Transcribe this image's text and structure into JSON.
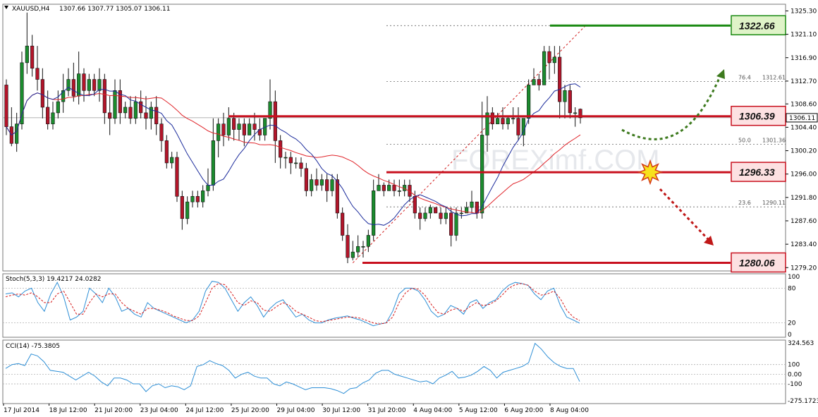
{
  "header": {
    "symbol": "XAUUSD,H4",
    "ohlc": "1307.66 1307.77 1305.07 1306.11"
  },
  "watermark": "FOREXimf.COM",
  "colors": {
    "bull": "#1b8c2e",
    "bear": "#b3152a",
    "ma_red": "#e0242a",
    "ma_blue": "#1c2c9c",
    "level_red": "#c8101e",
    "level_green": "#1a8a12",
    "stoch_main": "#2e8fd6",
    "stoch_signal": "#d61a1a",
    "cci": "#2e8fd6"
  },
  "chart_data": [
    {
      "type": "candlestick",
      "panel": "main",
      "y_axis": {
        "ticks": [
          "1325.30",
          "1321.10",
          "1316.90",
          "1312.70",
          "1308.60",
          "1304.40",
          "1300.20",
          "1296.00",
          "1291.80",
          "1287.60",
          "1283.40",
          "1279.20"
        ],
        "range": [
          1278.6,
          1326.5
        ]
      },
      "current_price": "1306.11",
      "candles": [
        [
          1312,
          1304.5,
          1313,
          1303
        ],
        [
          1304.5,
          1301.5,
          1308,
          1301
        ],
        [
          1301.5,
          1305,
          1307,
          1300
        ],
        [
          1305,
          1316,
          1318,
          1304
        ],
        [
          1316,
          1319,
          1325,
          1314
        ],
        [
          1319,
          1315,
          1321,
          1313.5
        ],
        [
          1315,
          1313,
          1319,
          1311
        ],
        [
          1313,
          1308,
          1315,
          1306
        ],
        [
          1308,
          1305,
          1311,
          1304
        ],
        [
          1305,
          1307,
          1309,
          1304
        ],
        [
          1307,
          1309,
          1311,
          1306
        ],
        [
          1309,
          1311,
          1314,
          1307
        ],
        [
          1311,
          1313,
          1315,
          1310
        ],
        [
          1313,
          1310,
          1316,
          1309
        ],
        [
          1310,
          1314,
          1318,
          1308.5
        ],
        [
          1314,
          1311,
          1315,
          1309
        ],
        [
          1311,
          1313,
          1314,
          1310
        ],
        [
          1313,
          1311,
          1314,
          1310
        ],
        [
          1311,
          1313,
          1315,
          1309
        ],
        [
          1313,
          1307,
          1314,
          1305
        ],
        [
          1307,
          1306,
          1310,
          1303
        ],
        [
          1306,
          1311,
          1313,
          1305
        ],
        [
          1311,
          1307,
          1313,
          1305
        ],
        [
          1307,
          1308,
          1309,
          1306
        ],
        [
          1308,
          1306,
          1310,
          1305
        ],
        [
          1306,
          1309,
          1310,
          1305
        ],
        [
          1309,
          1307,
          1311,
          1306
        ],
        [
          1307,
          1306,
          1310,
          1304
        ],
        [
          1306,
          1308,
          1309,
          1304
        ],
        [
          1308,
          1305,
          1310,
          1303
        ],
        [
          1305,
          1302,
          1306,
          1300
        ],
        [
          1302,
          1298,
          1303,
          1297
        ],
        [
          1298,
          1299,
          1300,
          1297
        ],
        [
          1299,
          1292,
          1300,
          1291
        ],
        [
          1292,
          1288,
          1293,
          1286
        ],
        [
          1288,
          1291,
          1292,
          1287
        ],
        [
          1291,
          1292,
          1293,
          1290
        ],
        [
          1292,
          1291,
          1293,
          1290
        ],
        [
          1291,
          1293,
          1294,
          1290
        ],
        [
          1293,
          1294,
          1297,
          1292
        ],
        [
          1294,
          1302,
          1306,
          1293
        ],
        [
          1302,
          1305,
          1306,
          1299
        ],
        [
          1305,
          1303,
          1307,
          1301
        ],
        [
          1303,
          1306,
          1308,
          1302
        ],
        [
          1306,
          1304,
          1307,
          1302
        ],
        [
          1304,
          1305,
          1306,
          1302
        ],
        [
          1305,
          1303,
          1306,
          1301
        ],
        [
          1303,
          1305,
          1306,
          1303
        ],
        [
          1305,
          1304,
          1307,
          1302
        ],
        [
          1304,
          1303,
          1306,
          1302
        ],
        [
          1303,
          1306,
          1306,
          1302
        ],
        [
          1306,
          1309,
          1313,
          1304
        ],
        [
          1309,
          1302,
          1311,
          1298
        ],
        [
          1302,
          1299,
          1303,
          1297
        ],
        [
          1299,
          1299,
          1300,
          1297
        ],
        [
          1299,
          1298,
          1300,
          1296
        ],
        [
          1298,
          1298,
          1299,
          1297
        ],
        [
          1298,
          1297,
          1299,
          1295.5
        ],
        [
          1297,
          1293,
          1298,
          1292
        ],
        [
          1293,
          1295,
          1296,
          1292
        ],
        [
          1295,
          1294,
          1297,
          1293
        ],
        [
          1294,
          1295,
          1296,
          1293
        ],
        [
          1295,
          1293,
          1296,
          1291
        ],
        [
          1293,
          1295,
          1296,
          1292
        ],
        [
          1295,
          1289,
          1296,
          1288
        ],
        [
          1289,
          1285,
          1290,
          1284
        ],
        [
          1285,
          1281,
          1287,
          1280
        ],
        [
          1281,
          1282,
          1284,
          1280.5
        ],
        [
          1282,
          1283,
          1285,
          1281
        ],
        [
          1283,
          1283,
          1284,
          1281
        ],
        [
          1283,
          1285,
          1286,
          1282
        ],
        [
          1285,
          1293,
          1295,
          1284
        ],
        [
          1293,
          1294,
          1296,
          1293
        ],
        [
          1294,
          1293,
          1294.5,
          1292
        ],
        [
          1293,
          1294,
          1295,
          1293
        ],
        [
          1294,
          1293,
          1295,
          1292
        ],
        [
          1293,
          1293,
          1295,
          1292
        ],
        [
          1293,
          1294,
          1295,
          1292
        ],
        [
          1294,
          1292,
          1295,
          1291
        ],
        [
          1292,
          1289,
          1293,
          1288
        ],
        [
          1289,
          1288,
          1290,
          1286
        ],
        [
          1288,
          1289,
          1290,
          1287.5
        ],
        [
          1289,
          1290,
          1290.5,
          1288
        ],
        [
          1290,
          1289,
          1290,
          1289
        ],
        [
          1289,
          1288,
          1290,
          1287
        ],
        [
          1288,
          1289,
          1290,
          1287
        ],
        [
          1289,
          1285,
          1290,
          1283
        ],
        [
          1285,
          1289,
          1290,
          1284
        ],
        [
          1289,
          1289,
          1290,
          1288
        ],
        [
          1289,
          1290,
          1291,
          1289
        ],
        [
          1290,
          1291,
          1293,
          1289
        ],
        [
          1291,
          1289,
          1291,
          1288
        ],
        [
          1289,
          1303,
          1309,
          1288
        ],
        [
          1303,
          1307,
          1310,
          1300
        ],
        [
          1307,
          1305,
          1308,
          1304
        ],
        [
          1305,
          1306,
          1307,
          1305
        ],
        [
          1306,
          1305,
          1308,
          1304
        ],
        [
          1305,
          1306,
          1306.5,
          1304
        ],
        [
          1306,
          1306,
          1308,
          1305
        ],
        [
          1306,
          1303,
          1308,
          1302
        ],
        [
          1303,
          1306,
          1306,
          1301
        ],
        [
          1306,
          1312,
          1313,
          1305
        ],
        [
          1312,
          1313,
          1315,
          1312
        ],
        [
          1313,
          1312,
          1314,
          1311
        ],
        [
          1312,
          1318,
          1319,
          1312
        ],
        [
          1318,
          1316,
          1319,
          1313
        ],
        [
          1316,
          1317,
          1319,
          1314
        ],
        [
          1317,
          1309,
          1319,
          1306
        ],
        [
          1309,
          1311,
          1312,
          1306
        ],
        [
          1311,
          1307,
          1312,
          1306
        ],
        [
          1307,
          1307,
          1308,
          1304.5
        ],
        [
          1307.66,
          1306.11,
          1307.77,
          1305.07
        ]
      ]
    },
    {
      "type": "line",
      "panel": "stochastic",
      "label": "Stoch(5,3,3) 19.4217 24.0282",
      "y_axis": {
        "ticks": [
          "100",
          "80",
          "20",
          "0"
        ],
        "range": [
          0,
          100
        ]
      },
      "series": [
        {
          "name": "main",
          "values": [
            70,
            72,
            65,
            75,
            80,
            55,
            40,
            70,
            90,
            65,
            25,
            30,
            40,
            80,
            70,
            55,
            80,
            65,
            40,
            45,
            35,
            30,
            55,
            45,
            40,
            35,
            30,
            25,
            20,
            25,
            40,
            75,
            92,
            90,
            80,
            60,
            40,
            55,
            65,
            50,
            30,
            45,
            55,
            60,
            45,
            30,
            35,
            25,
            20,
            20,
            25,
            28,
            30,
            32,
            28,
            25,
            20,
            15,
            18,
            20,
            40,
            70,
            80,
            80,
            75,
            60,
            40,
            30,
            35,
            50,
            45,
            35,
            55,
            60,
            45,
            55,
            60,
            75,
            85,
            90,
            88,
            85,
            70,
            60,
            75,
            80,
            50,
            30,
            25,
            19.4
          ]
        },
        {
          "name": "signal",
          "values": [
            65,
            68,
            70,
            68,
            72,
            65,
            55,
            55,
            70,
            75,
            55,
            35,
            35,
            55,
            70,
            65,
            70,
            70,
            55,
            45,
            40,
            35,
            45,
            45,
            42,
            38,
            32,
            28,
            24,
            24,
            32,
            55,
            80,
            88,
            86,
            72,
            55,
            50,
            58,
            55,
            42,
            40,
            48,
            55,
            50,
            40,
            35,
            30,
            24,
            22,
            24,
            26,
            28,
            30,
            30,
            28,
            24,
            20,
            18,
            20,
            30,
            55,
            72,
            80,
            78,
            68,
            52,
            38,
            35,
            42,
            45,
            40,
            48,
            55,
            50,
            52,
            58,
            68,
            80,
            86,
            88,
            85,
            75,
            68,
            70,
            75,
            62,
            42,
            30,
            24.0
          ]
        }
      ]
    },
    {
      "type": "line",
      "panel": "cci",
      "label": "CCI(14) -75.3805",
      "y_axis": {
        "ticks": [
          "324.563",
          "100",
          "0.00",
          "-100",
          "-275.1723"
        ],
        "range": [
          -275.1723,
          324.563
        ]
      },
      "series": [
        {
          "name": "CCI",
          "values": [
            60,
            100,
            110,
            90,
            210,
            190,
            130,
            40,
            30,
            20,
            -20,
            -60,
            -20,
            20,
            -20,
            -80,
            -120,
            -40,
            -40,
            -60,
            -100,
            -100,
            -180,
            -120,
            -100,
            -140,
            -120,
            -130,
            -160,
            -120,
            80,
            100,
            140,
            110,
            90,
            40,
            -40,
            0,
            20,
            -20,
            -40,
            -40,
            -100,
            -120,
            -80,
            -100,
            -130,
            -160,
            -140,
            -140,
            -140,
            -150,
            -170,
            -200,
            -150,
            -140,
            -90,
            -60,
            10,
            40,
            40,
            0,
            -20,
            -40,
            -60,
            -80,
            -70,
            -100,
            -40,
            -10,
            30,
            -40,
            -30,
            -10,
            30,
            80,
            40,
            -40,
            20,
            40,
            60,
            80,
            120,
            320,
            260,
            180,
            120,
            80,
            60,
            60,
            -75.4
          ]
        }
      ]
    }
  ],
  "price_levels": [
    {
      "label": "1322.66",
      "color": "green",
      "value": 1322.66
    },
    {
      "label": "1306.39",
      "color": "red",
      "value": 1306.39
    },
    {
      "label": "1296.33",
      "color": "red",
      "value": 1296.33
    },
    {
      "label": "1280.06",
      "color": "red",
      "value": 1280.06
    }
  ],
  "fibonacci": [
    {
      "ratio": "76.4",
      "price": "1312.61",
      "value": 1312.61
    },
    {
      "ratio": "50.0",
      "price": "1301.36",
      "value": 1301.36
    },
    {
      "ratio": "23.6",
      "price": "1290.11",
      "value": 1290.11
    }
  ],
  "x_axis": {
    "labels": [
      "17 Jul 2014",
      "18 Jul 12:00",
      "21 Jul 20:00",
      "23 Jul 04:00",
      "24 Jul 12:00",
      "25 Jul 20:00",
      "29 Jul 04:00",
      "30 Jul 12:00",
      "31 Jul 20:00",
      "4 Aug 04:00",
      "5 Aug 12:00",
      "6 Aug 20:00",
      "8 Aug 04:00"
    ]
  }
}
